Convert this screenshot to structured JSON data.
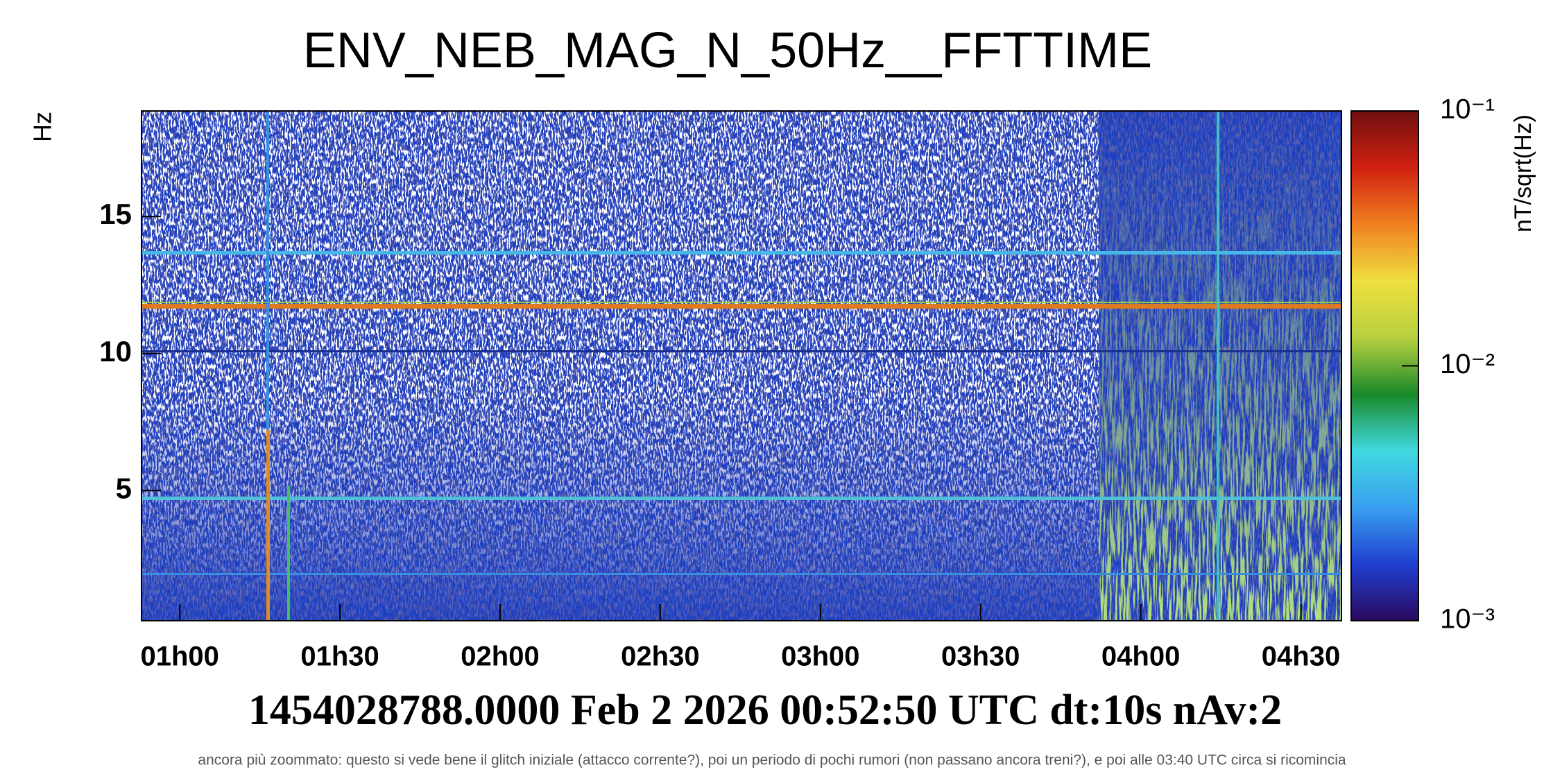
{
  "chart_data": {
    "type": "spectrogram",
    "title": "ENV_NEB_MAG_N_50Hz__FFTTIME",
    "ylabel": "Hz",
    "xlim": [
      52.83,
      277.6
    ],
    "xticks": [
      {
        "value": 60,
        "label": "01h00"
      },
      {
        "value": 90,
        "label": "01h30"
      },
      {
        "value": 120,
        "label": "02h00"
      },
      {
        "value": 150,
        "label": "02h30"
      },
      {
        "value": 180,
        "label": "03h00"
      },
      {
        "value": 210,
        "label": "03h30"
      },
      {
        "value": 240,
        "label": "04h00"
      },
      {
        "value": 270,
        "label": "04h30"
      }
    ],
    "ylim": [
      0.25,
      18.85
    ],
    "yticks": [
      5,
      10,
      15
    ],
    "colorbar": {
      "label": "nT/sqrt(Hz)",
      "log": true,
      "zlim": [
        0.001,
        0.1
      ],
      "zticks": [
        {
          "value": 0.001,
          "label": "10⁻³"
        },
        {
          "value": 0.01,
          "label": "10⁻²"
        },
        {
          "value": 0.1,
          "label": "10⁻¹"
        }
      ],
      "colors": [
        "#2a0a5e",
        "#1f3fd0",
        "#3aa0f0",
        "#40d8e0",
        "#1a8a2a",
        "#b8d040",
        "#f0e040",
        "#f08020",
        "#d02010",
        "#701010"
      ]
    },
    "footer": "1454028788.0000 Feb 2 2026 00:52:50 UTC dt:10s nAv:2",
    "caption": "ancora più zoommato: questo si vede bene il glitch iniziale (attacco corrente?), poi un periodo di pochi rumori (non passano ancora treni?), e poi alle 03:40 UTC circa si ricomincia"
  }
}
